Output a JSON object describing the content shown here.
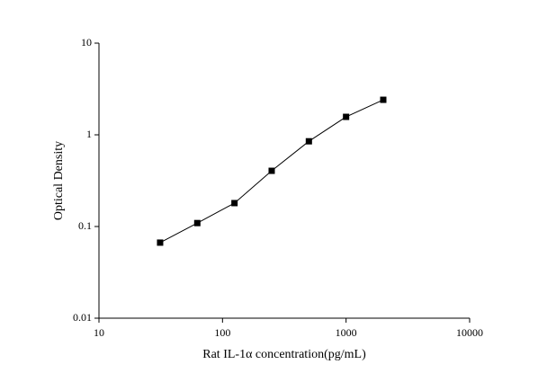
{
  "chart_data": {
    "type": "line",
    "xlabel": "Rat IL-1α concentration(pg/mL)",
    "ylabel": "Optical Density",
    "x": [
      31.25,
      62.5,
      125,
      250,
      500,
      1000,
      2000
    ],
    "series": [
      {
        "color": "#000000",
        "values": [
          0.0667,
          0.109,
          0.18,
          0.405,
          0.85,
          1.57,
          2.41
        ]
      }
    ],
    "xlim": [
      10,
      10000
    ],
    "ylim": [
      0.01,
      10
    ],
    "xscale": "log",
    "yscale": "log",
    "xticks": [
      10,
      100,
      1000,
      10000
    ],
    "yticks": [
      0.01,
      0.1,
      1,
      10
    ],
    "grid": false
  }
}
